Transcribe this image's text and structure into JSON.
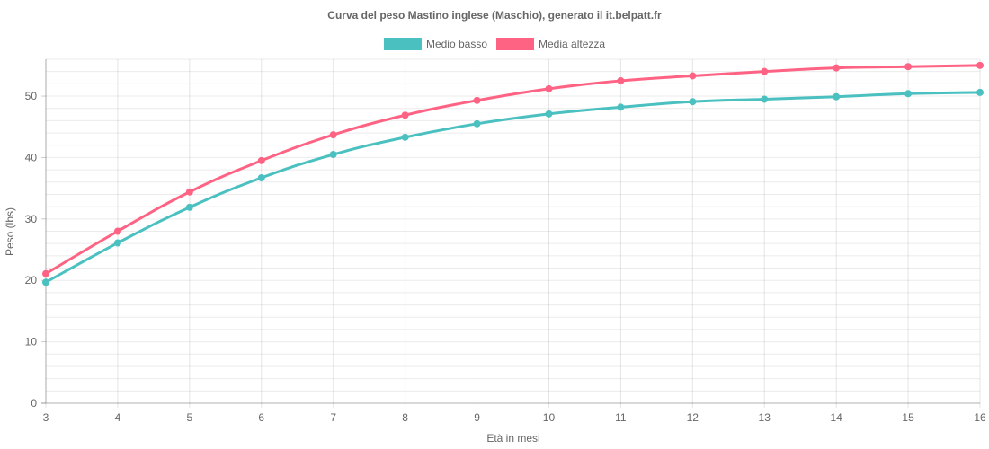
{
  "chart_data": {
    "type": "line",
    "title": "Curva del peso Mastino inglese (Maschio), generato il it.belpatt.fr",
    "xlabel": "Età in mesi",
    "ylabel": "Peso (lbs)",
    "x": [
      3,
      4,
      5,
      6,
      7,
      8,
      9,
      10,
      11,
      12,
      13,
      14,
      15,
      16
    ],
    "x_tick_labels": [
      "3",
      "4",
      "5",
      "6",
      "7",
      "8",
      "9",
      "10",
      "11",
      "12",
      "13",
      "14",
      "15",
      "16"
    ],
    "y_ticks": [
      0,
      10,
      20,
      30,
      40,
      50
    ],
    "y_tick_labels": [
      "0",
      "10",
      "20",
      "30",
      "40",
      "50"
    ],
    "ylim": [
      0,
      56
    ],
    "grid": true,
    "minor_grid_step": 2,
    "legend_position": "top-center",
    "series": [
      {
        "name": "Medio basso",
        "color": "#4bc0c0",
        "values": [
          19.7,
          26.1,
          31.9,
          36.7,
          40.5,
          43.3,
          45.5,
          47.1,
          48.2,
          49.1,
          49.5,
          49.9,
          50.4,
          50.6
        ]
      },
      {
        "name": "Media altezza",
        "color": "#ff6384",
        "values": [
          21.1,
          28.0,
          34.4,
          39.5,
          43.7,
          46.9,
          49.3,
          51.2,
          52.5,
          53.3,
          54.0,
          54.6,
          54.8,
          55.0
        ]
      }
    ]
  }
}
